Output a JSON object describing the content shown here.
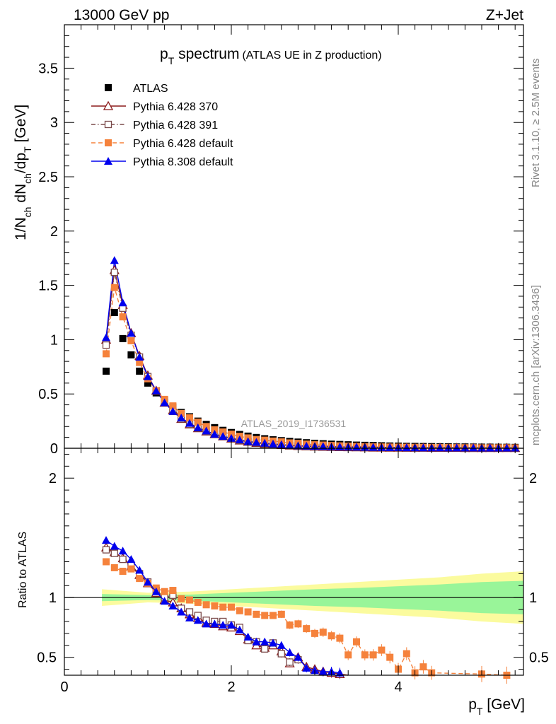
{
  "header": {
    "left": "13000 GeV pp",
    "right": "Z+Jet"
  },
  "side_labels": {
    "rivet": "Rivet 3.1.10, ≥ 2.5M events",
    "mcplots": "mcplots.cern.ch [arXiv:1306.3436]"
  },
  "watermark": "ATLAS_2019_I1736531",
  "colors": {
    "ATLAS": "#000000",
    "Pythia 6.428 370": "#8b1a1a",
    "Pythia 6.428 391": "#7a4a4a",
    "Pythia 6.428 default": "#f5823c",
    "Pythia 8.308 default": "#0000ee",
    "band_inner": "#99f599",
    "band_outer": "#fbfb9e"
  },
  "chart_data": [
    {
      "type": "scatter",
      "title_main": "p",
      "title_sub": "T",
      "title_rest": " spectrum",
      "title_small": "(ATLAS UE in Z production)",
      "xlabel_main": "p",
      "xlabel_sub": "T",
      "xlabel_rest": " [GeV]",
      "ylabel_parts": [
        "1/N",
        "ch",
        " dN",
        "ch",
        "/dp",
        "T",
        " [GeV]"
      ],
      "xlim": [
        0,
        5.5
      ],
      "ylim": [
        0,
        3.9
      ],
      "yticks": [
        "0",
        "0.5",
        "1",
        "1.5",
        "2",
        "2.5",
        "3",
        "3.5"
      ],
      "legend_position": "top-left",
      "x": [
        0.5,
        0.6,
        0.7,
        0.8,
        0.9,
        1.0,
        1.1,
        1.2,
        1.3,
        1.4,
        1.5,
        1.6,
        1.7,
        1.8,
        1.9,
        2.0,
        2.1,
        2.2,
        2.3,
        2.4,
        2.5,
        2.6,
        2.7,
        2.8,
        2.9,
        3.0,
        3.1,
        3.2,
        3.3,
        3.4,
        3.5,
        3.6,
        3.7,
        3.8,
        3.9,
        4.0,
        4.1,
        4.2,
        4.3,
        4.4,
        4.5,
        4.6,
        4.7,
        4.8,
        4.9,
        5.0,
        5.1,
        5.2,
        5.3,
        5.4
      ],
      "series": [
        {
          "name": "ATLAS",
          "marker": "square-filled",
          "line": "none",
          "values": [
            0.71,
            1.25,
            1.01,
            0.86,
            0.71,
            0.6,
            0.51,
            0.44,
            0.38,
            0.33,
            0.29,
            0.25,
            0.22,
            0.19,
            0.165,
            0.145,
            0.127,
            0.112,
            0.099,
            0.088,
            0.078,
            0.07,
            0.063,
            0.057,
            0.051,
            0.046,
            0.042,
            0.038,
            0.035,
            0.032,
            0.029,
            0.027,
            0.025,
            0.023,
            0.021,
            0.02,
            0.018,
            0.017,
            0.016,
            0.015,
            0.014,
            0.013,
            0.012,
            0.012,
            0.011,
            0.01,
            0.01,
            0.009,
            0.009,
            0.008
          ]
        },
        {
          "name": "Pythia 6.428 370",
          "marker": "triangle-open",
          "line": "solid",
          "values": [
            1.0,
            1.64,
            1.32,
            1.06,
            0.85,
            0.67,
            0.53,
            0.42,
            0.35,
            0.27,
            0.22,
            0.185,
            0.155,
            0.13,
            0.11,
            0.09,
            0.072,
            0.06,
            0.05,
            0.042,
            0.036,
            0.03,
            0.025,
            0.021,
            0.018,
            0.016,
            0.014,
            0.012,
            0.011,
            0.01,
            0.009,
            0.008,
            0.007,
            0.007,
            0.006,
            0.006,
            0.005,
            0.005,
            0.005,
            0.004,
            0.004,
            0.004,
            0.004,
            0.003,
            0.003,
            0.003,
            0.003,
            0.003,
            0.003,
            0.003
          ]
        },
        {
          "name": "Pythia 6.428 391",
          "marker": "square-open",
          "line": "dash-dot",
          "values": [
            0.95,
            1.62,
            1.29,
            1.04,
            0.84,
            0.66,
            0.53,
            0.42,
            0.34,
            0.27,
            0.22,
            0.185,
            0.155,
            0.13,
            0.11,
            0.09,
            0.072,
            0.06,
            0.05,
            0.042,
            0.036,
            0.03,
            0.025,
            0.021,
            0.018,
            0.016,
            0.014,
            0.012,
            0.011,
            0.01,
            0.009,
            0.008,
            0.007,
            0.007,
            0.006,
            0.006,
            0.005,
            0.005,
            0.005,
            0.004,
            0.004,
            0.004,
            0.004,
            0.003,
            0.003,
            0.003,
            0.003,
            0.003,
            0.003,
            0.003
          ]
        },
        {
          "name": "Pythia 6.428 default",
          "marker": "square-filled",
          "line": "dash",
          "values": [
            0.87,
            1.48,
            1.21,
            0.99,
            0.79,
            0.64,
            0.53,
            0.45,
            0.39,
            0.32,
            0.28,
            0.24,
            0.2,
            0.17,
            0.15,
            0.13,
            0.11,
            0.095,
            0.08,
            0.074,
            0.066,
            0.059,
            0.049,
            0.045,
            0.038,
            0.032,
            0.029,
            0.025,
            0.022,
            0.019,
            0.017,
            0.015,
            0.013,
            0.012,
            0.011,
            0.01,
            0.009,
            0.008,
            0.007,
            0.007,
            0.006,
            0.006,
            0.005,
            0.005,
            0.005,
            0.004,
            0.004,
            0.004,
            0.004,
            0.003
          ]
        },
        {
          "name": "Pythia 8.308 default",
          "marker": "triangle-filled",
          "line": "solid",
          "values": [
            1.02,
            1.73,
            1.34,
            1.06,
            0.84,
            0.66,
            0.53,
            0.42,
            0.34,
            0.28,
            0.23,
            0.19,
            0.16,
            0.13,
            0.11,
            0.093,
            0.078,
            0.063,
            0.055,
            0.047,
            0.04,
            0.034,
            0.028,
            0.024,
            0.021,
            0.019,
            0.017,
            0.015,
            0.013,
            0.012,
            0.011,
            0.01,
            0.009,
            0.008,
            0.007,
            0.007,
            0.006,
            0.006,
            0.005,
            0.005,
            0.005,
            0.004,
            0.004,
            0.004,
            0.004,
            0.003,
            0.003,
            0.003,
            0.003,
            0.003
          ]
        }
      ]
    },
    {
      "type": "scatter",
      "ylabel": "Ratio to ATLAS",
      "xlim": [
        0,
        5.5
      ],
      "ylim": [
        0.35,
        2.25
      ],
      "xticks": [
        "0",
        "2",
        "4"
      ],
      "yticks": [
        "0.5",
        "1",
        "2"
      ],
      "reference_line": 1,
      "uncertainty_band": {
        "x": [
          0.45,
          1.0,
          1.5,
          2.0,
          2.5,
          3.0,
          3.5,
          4.0,
          4.5,
          5.0,
          5.5
        ],
        "inner_half_width": [
          0.03,
          0.02,
          0.025,
          0.04,
          0.055,
          0.07,
          0.08,
          0.095,
          0.11,
          0.13,
          0.14
        ],
        "outer_half_width": [
          0.07,
          0.04,
          0.05,
          0.07,
          0.09,
          0.11,
          0.13,
          0.15,
          0.17,
          0.2,
          0.22
        ]
      },
      "series": [
        {
          "name": "Pythia 6.428 370",
          "marker": "triangle-open",
          "x": [
            0.5,
            0.6,
            0.7,
            0.8,
            0.9,
            1.0,
            1.1,
            1.2,
            1.3,
            1.4,
            1.5,
            1.6,
            1.7,
            1.8,
            1.9,
            2.0,
            2.1,
            2.2,
            2.3,
            2.4,
            2.5,
            2.6,
            2.7,
            2.8,
            2.9,
            3.0,
            3.1,
            3.2,
            3.3,
            3.4
          ],
          "values": [
            1.42,
            1.38,
            1.33,
            1.26,
            1.19,
            1.12,
            1.04,
            0.98,
            0.96,
            0.91,
            0.86,
            0.83,
            0.79,
            0.78,
            0.76,
            0.75,
            0.72,
            0.65,
            0.6,
            0.58,
            0.6,
            0.55,
            0.45,
            0.5,
            0.42,
            0.4,
            0.38,
            0.37,
            0.36,
            0.34
          ]
        },
        {
          "name": "Pythia 6.428 391",
          "marker": "square-open",
          "x": [
            0.5,
            0.6,
            0.7,
            0.8,
            0.9,
            1.0,
            1.1,
            1.2,
            1.3,
            1.4,
            1.5,
            1.6,
            1.7,
            1.8,
            1.9,
            2.0,
            2.1,
            2.2,
            2.3,
            2.4,
            2.5,
            2.6,
            2.7,
            2.8
          ],
          "values": [
            1.4,
            1.37,
            1.32,
            1.27,
            1.2,
            1.13,
            1.06,
            1.0,
            1.02,
            0.91,
            0.88,
            0.85,
            0.81,
            0.8,
            0.8,
            0.77,
            0.75,
            0.64,
            0.63,
            0.57,
            0.62,
            0.53,
            0.46,
            0.48
          ]
        },
        {
          "name": "Pythia 6.428 default",
          "marker": "square-filled",
          "x": [
            0.5,
            0.6,
            0.7,
            0.8,
            0.9,
            1.0,
            1.1,
            1.2,
            1.3,
            1.4,
            1.5,
            1.6,
            1.7,
            1.8,
            1.9,
            2.0,
            2.1,
            2.2,
            2.3,
            2.4,
            2.5,
            2.6,
            2.7,
            2.8,
            2.9,
            3.0,
            3.1,
            3.2,
            3.3,
            3.4,
            3.5,
            3.6,
            3.7,
            3.8,
            3.9,
            4.0,
            4.1,
            4.2,
            4.3,
            4.4,
            5.0,
            5.3
          ],
          "values": [
            1.3,
            1.25,
            1.22,
            1.24,
            1.16,
            1.12,
            1.08,
            1.05,
            1.06,
            0.99,
            0.98,
            0.96,
            0.94,
            0.93,
            0.92,
            0.92,
            0.89,
            0.88,
            0.86,
            0.85,
            0.85,
            0.86,
            0.77,
            0.78,
            0.74,
            0.7,
            0.71,
            0.68,
            0.66,
            0.52,
            0.63,
            0.52,
            0.52,
            0.56,
            0.5,
            0.4,
            0.53,
            0.37,
            0.42,
            0.37,
            0.36,
            0.35
          ]
        },
        {
          "name": "Pythia 8.308 default",
          "marker": "triangle-filled",
          "x": [
            0.5,
            0.6,
            0.7,
            0.8,
            0.9,
            1.0,
            1.1,
            1.2,
            1.3,
            1.4,
            1.5,
            1.6,
            1.7,
            1.8,
            1.9,
            2.0,
            2.1,
            2.2,
            2.3,
            2.4,
            2.5,
            2.6,
            2.7,
            2.8,
            2.9,
            3.0,
            3.1,
            3.2,
            3.3
          ],
          "values": [
            1.48,
            1.43,
            1.39,
            1.32,
            1.23,
            1.13,
            1.05,
            0.97,
            0.93,
            0.88,
            0.83,
            0.81,
            0.78,
            0.78,
            0.77,
            0.77,
            0.73,
            0.67,
            0.63,
            0.63,
            0.62,
            0.6,
            0.54,
            0.5,
            0.41,
            0.39,
            0.38,
            0.38,
            0.37
          ]
        }
      ]
    }
  ]
}
